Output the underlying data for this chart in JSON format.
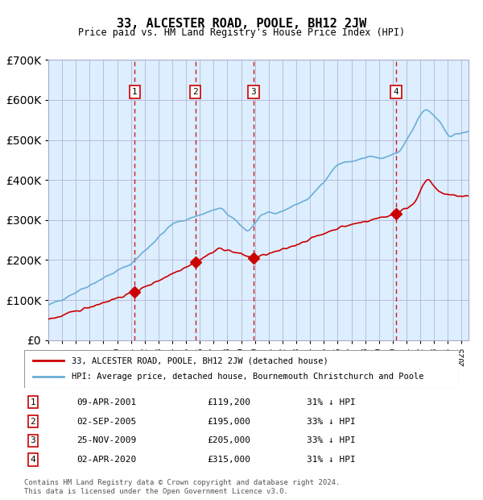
{
  "title": "33, ALCESTER ROAD, POOLE, BH12 2JW",
  "subtitle": "Price paid vs. HM Land Registry's House Price Index (HPI)",
  "legend_line1": "33, ALCESTER ROAD, POOLE, BH12 2JW (detached house)",
  "legend_line2": "HPI: Average price, detached house, Bournemouth Christchurch and Poole",
  "footnote": "Contains HM Land Registry data © Crown copyright and database right 2024.\nThis data is licensed under the Open Government Licence v3.0.",
  "transactions": [
    {
      "num": 1,
      "date": "09-APR-2001",
      "price": 119200,
      "pct": "31% ↓ HPI",
      "year": 2001.27
    },
    {
      "num": 2,
      "date": "02-SEP-2005",
      "price": 195000,
      "pct": "33% ↓ HPI",
      "year": 2005.67
    },
    {
      "num": 3,
      "date": "25-NOV-2009",
      "price": 205000,
      "pct": "33% ↓ HPI",
      "year": 2009.9
    },
    {
      "num": 4,
      "date": "02-APR-2020",
      "price": 315000,
      "pct": "31% ↓ HPI",
      "year": 2020.25
    }
  ],
  "hpi_color": "#6baed6",
  "price_color": "#cc0000",
  "background_chart": "#ddeeff",
  "vline_color": "#cc0000",
  "box_color": "#cc0000",
  "ylim": [
    0,
    700000
  ],
  "xlim_start": 1995.0,
  "xlim_end": 2025.5
}
